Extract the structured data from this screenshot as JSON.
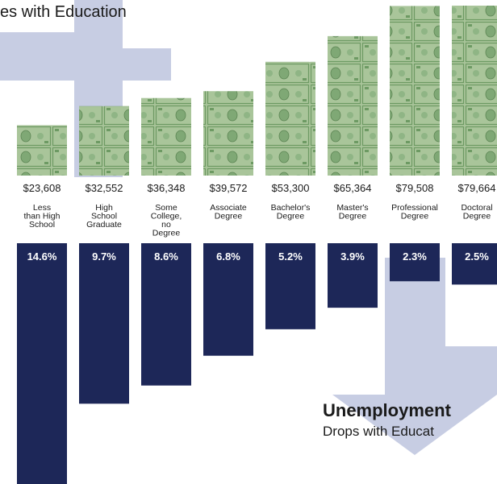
{
  "headlines": {
    "earnings_fragment": "es with Education",
    "unemployment_title": "Unemployment",
    "unemployment_subtitle": "Drops with Educat"
  },
  "colors": {
    "arrow": "#c7cde3",
    "bar": "#1d2758",
    "money_light": "#a9c59a",
    "money_dark": "#6d9a63",
    "text": "#1a1a1a",
    "bar_label": "#ffffff"
  },
  "chart_data": {
    "type": "bar",
    "categories": [
      "Less than High School",
      "High School Graduate",
      "Some College, no Degree",
      "Associate Degree",
      "Bachelor's Degree",
      "Master's Degree",
      "Professional Degree",
      "Doctoral Degree"
    ],
    "category_lines": [
      [
        "Less",
        "than High",
        "School"
      ],
      [
        "High",
        "School",
        "Graduate"
      ],
      [
        "Some",
        "College,",
        "no",
        "Degree"
      ],
      [
        "Associate",
        "Degree"
      ],
      [
        "Bachelor's",
        "Degree"
      ],
      [
        "Master's",
        "Degree"
      ],
      [
        "Professional",
        "Degree"
      ],
      [
        "Doctoral",
        "Degree"
      ]
    ],
    "series": [
      {
        "name": "",
        "values": [
          23608,
          32552,
          36348,
          39572,
          53300,
          65364,
          79508,
          79664
        ],
        "labels": [
          "$23,608",
          "$32,552",
          "$36,348",
          "$39,572",
          "$53,300",
          "$65,364",
          "$79,508",
          "$79,664"
        ]
      },
      {
        "name": "",
        "values": [
          14.6,
          9.7,
          8.6,
          6.8,
          5.2,
          3.9,
          2.3,
          2.5
        ],
        "labels": [
          "14.6%",
          "9.7%",
          "8.6%",
          "6.8%",
          "5.2%",
          "3.9%",
          "2.3%",
          "2.5%"
        ]
      }
    ]
  }
}
